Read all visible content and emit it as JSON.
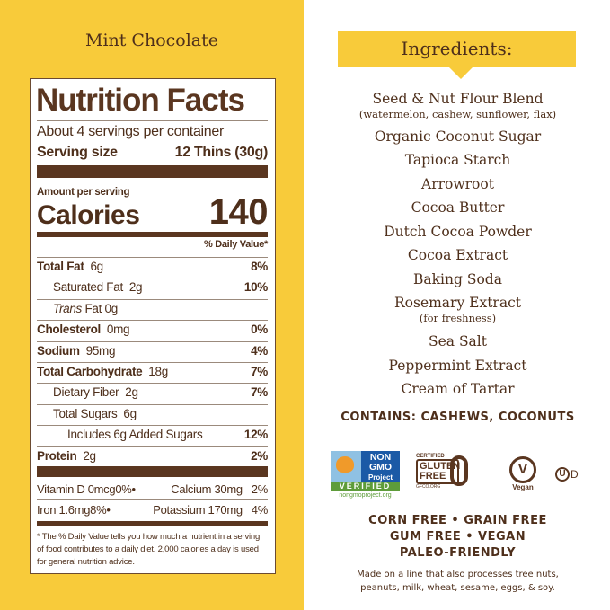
{
  "flavor": "Mint Chocolate",
  "label": {
    "title": "Nutrition Facts",
    "servings": "About 4 servings per container",
    "serving_size_label": "Serving size",
    "serving_size": "12 Thins (30g)",
    "amount_per_serving": "Amount per serving",
    "calories_label": "Calories",
    "calories": "140",
    "dv_header": "% Daily Value*",
    "nutrients": [
      {
        "name": "Total Fat",
        "amount": "6g",
        "dv": "8%"
      },
      {
        "name": "Saturated Fat",
        "amount": "2g",
        "dv": "10%"
      },
      {
        "name": "Trans",
        "name2": "Fat",
        "amount": "0g",
        "dv": ""
      },
      {
        "name": "Cholesterol",
        "amount": "0mg",
        "dv": "0%"
      },
      {
        "name": "Sodium",
        "amount": "95mg",
        "dv": "4%"
      },
      {
        "name": "Total Carbohydrate",
        "amount": "18g",
        "dv": "7%"
      },
      {
        "name": "Dietary Fiber",
        "amount": "2g",
        "dv": "7%"
      },
      {
        "name": "Total Sugars",
        "amount": "6g",
        "dv": ""
      },
      {
        "name": "Includes 6g Added Sugars",
        "amount": "",
        "dv": "12%"
      },
      {
        "name": "Protein",
        "amount": "2g",
        "dv": "2%"
      }
    ],
    "vitamins": [
      {
        "left": "Vitamin D 0mcg",
        "left_dv": "0%",
        "right": "Calcium 30mg",
        "right_dv": "2%"
      },
      {
        "left": "Iron 1.6mg",
        "left_dv": "8%",
        "right": "Potassium 170mg",
        "right_dv": "4%"
      }
    ],
    "bullet": "•",
    "footnote": "* The % Daily Value tells you how much a nutrient in a serving of food contributes to a daily diet. 2,000 calories a day is used for general nutrition advice."
  },
  "ingredients": {
    "heading": "Ingredients:",
    "items": [
      {
        "name": "Seed & Nut Flour Blend",
        "note": "(watermelon, cashew, sunflower, flax)"
      },
      {
        "name": "Organic Coconut Sugar"
      },
      {
        "name": "Tapioca Starch"
      },
      {
        "name": "Arrowroot"
      },
      {
        "name": "Cocoa Butter"
      },
      {
        "name": "Dutch Cocoa Powder"
      },
      {
        "name": "Cocoa Extract"
      },
      {
        "name": "Baking Soda"
      },
      {
        "name": "Rosemary Extract",
        "note": "(for freshness)"
      },
      {
        "name": "Sea Salt"
      },
      {
        "name": "Peppermint Extract"
      },
      {
        "name": "Cream of Tartar"
      }
    ],
    "contains": "CONTAINS: CASHEWS, COCONUTS"
  },
  "badges": {
    "nongmo": {
      "line1": "NON",
      "line2": "GMO",
      "line3": "Project",
      "verified": "VERIFIED",
      "url": "nongmoproject.org"
    },
    "gluten": {
      "certified": "CERTIFIED",
      "line1": "GLUTEN",
      "line2": "FREE",
      "org": "GFCO.ORG"
    },
    "vegan": {
      "letter": "V",
      "label": "Vegan"
    },
    "kosher": {
      "letter": "U",
      "suffix": "D"
    }
  },
  "claims": [
    "CORN FREE • GRAIN FREE",
    "GUM FREE • VEGAN",
    "PALEO-FRIENDLY"
  ],
  "allergen_note": [
    "Made on a line that also processes tree nuts,",
    "peanuts, milk, wheat, sesame, eggs, & soy."
  ],
  "colors": {
    "yellow": "#f8cb3a",
    "brown": "#5a3620"
  }
}
